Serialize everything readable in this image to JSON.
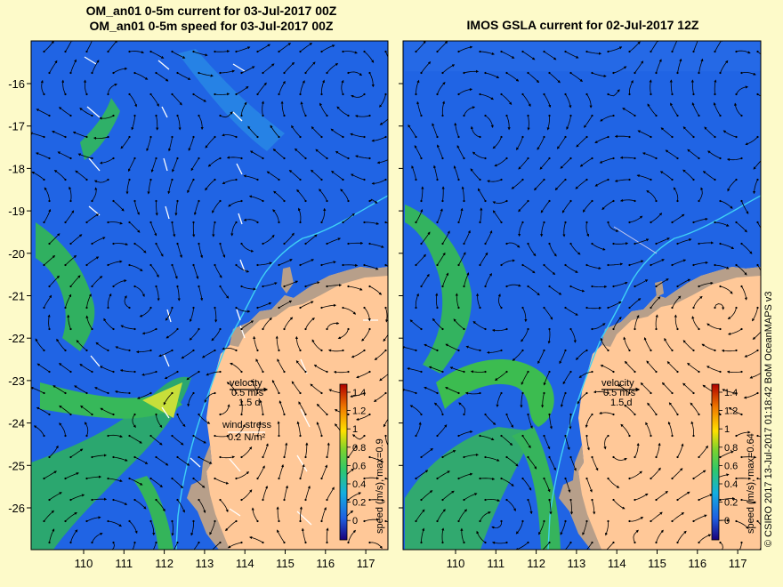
{
  "panels": [
    {
      "title_line1": "OM_an01 0-5m current for 03-Jul-2017 00Z",
      "title_line2": "OM_an01 0-5m speed for 03-Jul-2017 00Z",
      "velocity_label": "velocity",
      "velocity_scale": "0.5 m/s",
      "velocity_days": "1.5 d",
      "wind_label": "wind stress",
      "wind_scale": "0.2 N/m²",
      "colorbar_label": "speed (m/s), max=0.9"
    },
    {
      "title": "IMOS GSLA current for 02-Jul-2017 12Z",
      "velocity_label": "velocity",
      "velocity_scale": "0.5 m/s",
      "velocity_days": "1.5 d",
      "colorbar_label": "speed (m/s), max=0.64"
    }
  ],
  "axes": {
    "lon_ticks": [
      "110",
      "111",
      "112",
      "113",
      "114",
      "115",
      "116",
      "117"
    ],
    "lat_ticks": [
      "-16",
      "-17",
      "-18",
      "-19",
      "-20",
      "-21",
      "-22",
      "-23",
      "-24",
      "-25",
      "-26"
    ]
  },
  "colorbar_ticks": [
    "1.4",
    "1.2",
    "1",
    "0.8",
    "0.6",
    "0.4",
    "0.2",
    "0"
  ],
  "credit": "© CSIRO 2017  13-Jul-2017 01:18:42 BoM OceanMAPS v3",
  "colors": {
    "ocean": "#1f5fe0",
    "land": "#ffc898",
    "shelf": "#b79f8a",
    "page": "#fdfac9",
    "jet": "#3cbd4a"
  }
}
